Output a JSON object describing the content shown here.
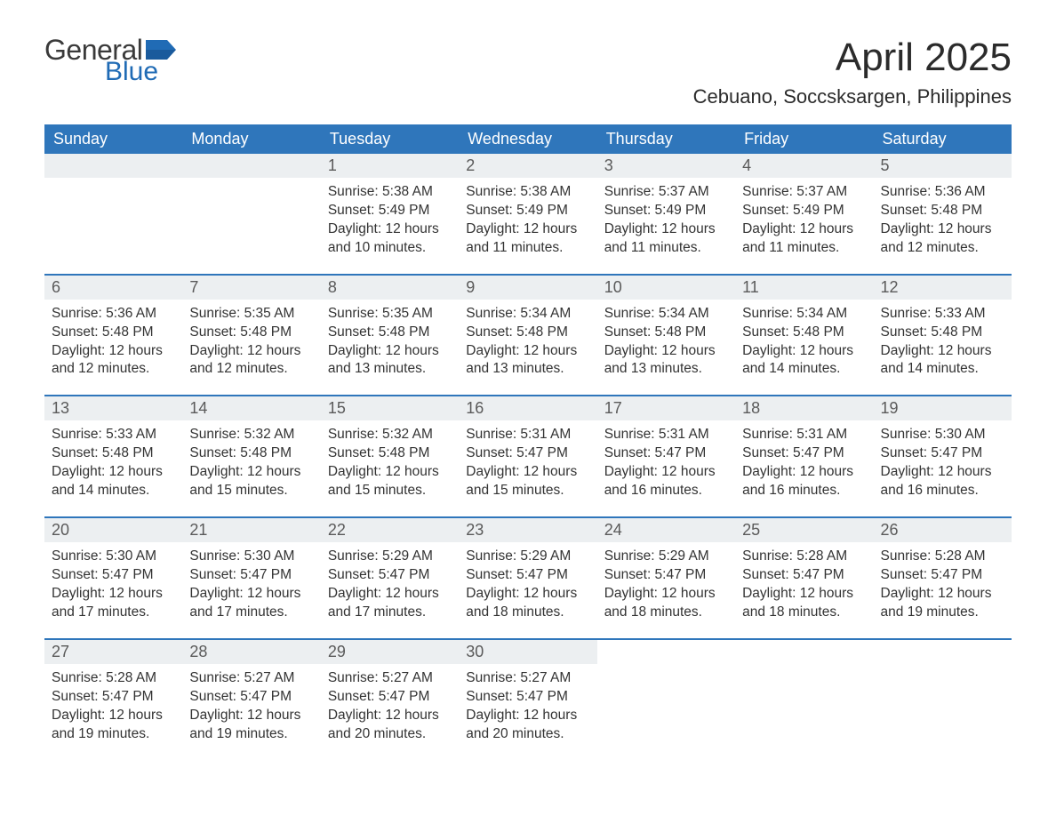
{
  "logo": {
    "general": "General",
    "blue": "Blue",
    "flag_color": "#206bb5"
  },
  "title": "April 2025",
  "location": "Cebuano, Soccsksargen, Philippines",
  "colors": {
    "header_bg": "#2f76bb",
    "header_text": "#ffffff",
    "daynum_bg": "#eceff1",
    "week_border": "#2f76bb",
    "body_text": "#333333",
    "logo_blue": "#206bb5"
  },
  "weekdays": [
    "Sunday",
    "Monday",
    "Tuesday",
    "Wednesday",
    "Thursday",
    "Friday",
    "Saturday"
  ],
  "weeks": [
    [
      {
        "empty": true
      },
      {
        "empty": true
      },
      {
        "n": "1",
        "sr": "Sunrise: 5:38 AM",
        "ss": "Sunset: 5:49 PM",
        "d1": "Daylight: 12 hours",
        "d2": "and 10 minutes."
      },
      {
        "n": "2",
        "sr": "Sunrise: 5:38 AM",
        "ss": "Sunset: 5:49 PM",
        "d1": "Daylight: 12 hours",
        "d2": "and 11 minutes."
      },
      {
        "n": "3",
        "sr": "Sunrise: 5:37 AM",
        "ss": "Sunset: 5:49 PM",
        "d1": "Daylight: 12 hours",
        "d2": "and 11 minutes."
      },
      {
        "n": "4",
        "sr": "Sunrise: 5:37 AM",
        "ss": "Sunset: 5:49 PM",
        "d1": "Daylight: 12 hours",
        "d2": "and 11 minutes."
      },
      {
        "n": "5",
        "sr": "Sunrise: 5:36 AM",
        "ss": "Sunset: 5:48 PM",
        "d1": "Daylight: 12 hours",
        "d2": "and 12 minutes."
      }
    ],
    [
      {
        "n": "6",
        "sr": "Sunrise: 5:36 AM",
        "ss": "Sunset: 5:48 PM",
        "d1": "Daylight: 12 hours",
        "d2": "and 12 minutes."
      },
      {
        "n": "7",
        "sr": "Sunrise: 5:35 AM",
        "ss": "Sunset: 5:48 PM",
        "d1": "Daylight: 12 hours",
        "d2": "and 12 minutes."
      },
      {
        "n": "8",
        "sr": "Sunrise: 5:35 AM",
        "ss": "Sunset: 5:48 PM",
        "d1": "Daylight: 12 hours",
        "d2": "and 13 minutes."
      },
      {
        "n": "9",
        "sr": "Sunrise: 5:34 AM",
        "ss": "Sunset: 5:48 PM",
        "d1": "Daylight: 12 hours",
        "d2": "and 13 minutes."
      },
      {
        "n": "10",
        "sr": "Sunrise: 5:34 AM",
        "ss": "Sunset: 5:48 PM",
        "d1": "Daylight: 12 hours",
        "d2": "and 13 minutes."
      },
      {
        "n": "11",
        "sr": "Sunrise: 5:34 AM",
        "ss": "Sunset: 5:48 PM",
        "d1": "Daylight: 12 hours",
        "d2": "and 14 minutes."
      },
      {
        "n": "12",
        "sr": "Sunrise: 5:33 AM",
        "ss": "Sunset: 5:48 PM",
        "d1": "Daylight: 12 hours",
        "d2": "and 14 minutes."
      }
    ],
    [
      {
        "n": "13",
        "sr": "Sunrise: 5:33 AM",
        "ss": "Sunset: 5:48 PM",
        "d1": "Daylight: 12 hours",
        "d2": "and 14 minutes."
      },
      {
        "n": "14",
        "sr": "Sunrise: 5:32 AM",
        "ss": "Sunset: 5:48 PM",
        "d1": "Daylight: 12 hours",
        "d2": "and 15 minutes."
      },
      {
        "n": "15",
        "sr": "Sunrise: 5:32 AM",
        "ss": "Sunset: 5:48 PM",
        "d1": "Daylight: 12 hours",
        "d2": "and 15 minutes."
      },
      {
        "n": "16",
        "sr": "Sunrise: 5:31 AM",
        "ss": "Sunset: 5:47 PM",
        "d1": "Daylight: 12 hours",
        "d2": "and 15 minutes."
      },
      {
        "n": "17",
        "sr": "Sunrise: 5:31 AM",
        "ss": "Sunset: 5:47 PM",
        "d1": "Daylight: 12 hours",
        "d2": "and 16 minutes."
      },
      {
        "n": "18",
        "sr": "Sunrise: 5:31 AM",
        "ss": "Sunset: 5:47 PM",
        "d1": "Daylight: 12 hours",
        "d2": "and 16 minutes."
      },
      {
        "n": "19",
        "sr": "Sunrise: 5:30 AM",
        "ss": "Sunset: 5:47 PM",
        "d1": "Daylight: 12 hours",
        "d2": "and 16 minutes."
      }
    ],
    [
      {
        "n": "20",
        "sr": "Sunrise: 5:30 AM",
        "ss": "Sunset: 5:47 PM",
        "d1": "Daylight: 12 hours",
        "d2": "and 17 minutes."
      },
      {
        "n": "21",
        "sr": "Sunrise: 5:30 AM",
        "ss": "Sunset: 5:47 PM",
        "d1": "Daylight: 12 hours",
        "d2": "and 17 minutes."
      },
      {
        "n": "22",
        "sr": "Sunrise: 5:29 AM",
        "ss": "Sunset: 5:47 PM",
        "d1": "Daylight: 12 hours",
        "d2": "and 17 minutes."
      },
      {
        "n": "23",
        "sr": "Sunrise: 5:29 AM",
        "ss": "Sunset: 5:47 PM",
        "d1": "Daylight: 12 hours",
        "d2": "and 18 minutes."
      },
      {
        "n": "24",
        "sr": "Sunrise: 5:29 AM",
        "ss": "Sunset: 5:47 PM",
        "d1": "Daylight: 12 hours",
        "d2": "and 18 minutes."
      },
      {
        "n": "25",
        "sr": "Sunrise: 5:28 AM",
        "ss": "Sunset: 5:47 PM",
        "d1": "Daylight: 12 hours",
        "d2": "and 18 minutes."
      },
      {
        "n": "26",
        "sr": "Sunrise: 5:28 AM",
        "ss": "Sunset: 5:47 PM",
        "d1": "Daylight: 12 hours",
        "d2": "and 19 minutes."
      }
    ],
    [
      {
        "n": "27",
        "sr": "Sunrise: 5:28 AM",
        "ss": "Sunset: 5:47 PM",
        "d1": "Daylight: 12 hours",
        "d2": "and 19 minutes."
      },
      {
        "n": "28",
        "sr": "Sunrise: 5:27 AM",
        "ss": "Sunset: 5:47 PM",
        "d1": "Daylight: 12 hours",
        "d2": "and 19 minutes."
      },
      {
        "n": "29",
        "sr": "Sunrise: 5:27 AM",
        "ss": "Sunset: 5:47 PM",
        "d1": "Daylight: 12 hours",
        "d2": "and 20 minutes."
      },
      {
        "n": "30",
        "sr": "Sunrise: 5:27 AM",
        "ss": "Sunset: 5:47 PM",
        "d1": "Daylight: 12 hours",
        "d2": "and 20 minutes."
      },
      {
        "empty": true,
        "blank": true
      },
      {
        "empty": true,
        "blank": true
      },
      {
        "empty": true,
        "blank": true
      }
    ]
  ]
}
